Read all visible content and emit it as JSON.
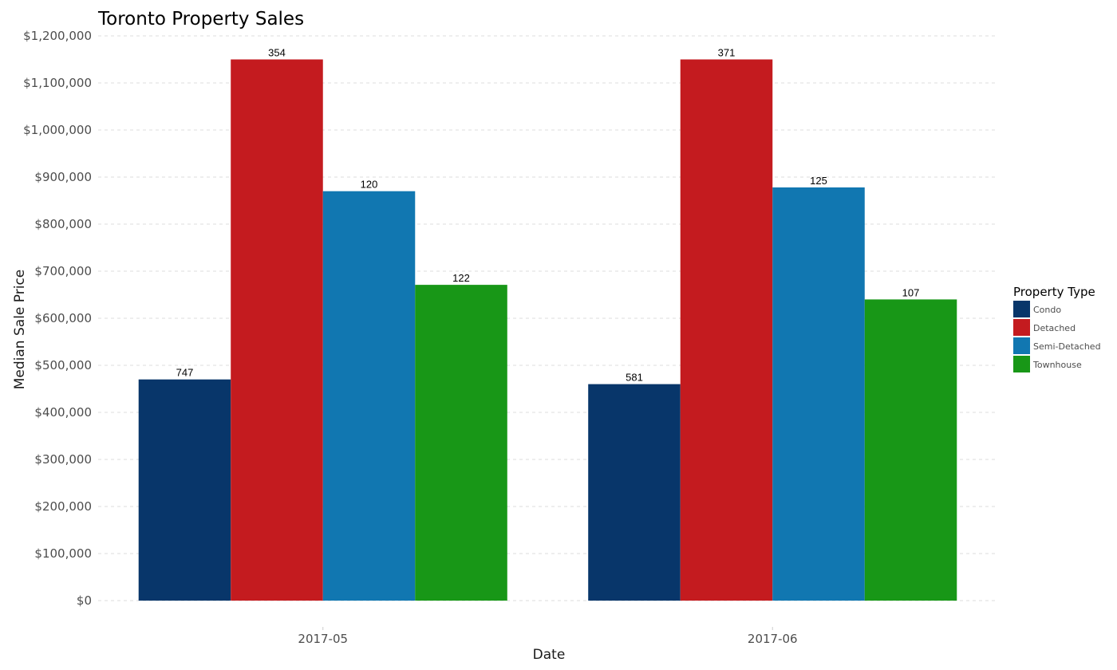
{
  "chart_data": {
    "type": "bar",
    "title": "Toronto Property Sales",
    "xlabel": "Date",
    "ylabel": "Median Sale Price",
    "categories": [
      "2017-05",
      "2017-06"
    ],
    "ylim": [
      0,
      1200000
    ],
    "yticks": [
      0,
      100000,
      200000,
      300000,
      400000,
      500000,
      600000,
      700000,
      800000,
      900000,
      1000000,
      1100000,
      1200000
    ],
    "ytick_labels": [
      "$0",
      "$100,000",
      "$200,000",
      "$300,000",
      "$400,000",
      "$500,000",
      "$600,000",
      "$700,000",
      "$800,000",
      "$900,000",
      "$1,000,000",
      "$1,100,000",
      "$1,200,000"
    ],
    "grid": true,
    "legend": {
      "title": "Property Type",
      "position": "right"
    },
    "series": [
      {
        "name": "Condo",
        "color": "#08366a",
        "values": [
          470000,
          460000
        ],
        "labels": [
          "747",
          "581"
        ]
      },
      {
        "name": "Detached",
        "color": "#c41b1f",
        "values": [
          1150000,
          1150000
        ],
        "labels": [
          "354",
          "371"
        ]
      },
      {
        "name": "Semi-Detached",
        "color": "#1177b1",
        "values": [
          870000,
          878000
        ],
        "labels": [
          "120",
          "125"
        ]
      },
      {
        "name": "Townhouse",
        "color": "#189717",
        "values": [
          671000,
          640000
        ],
        "labels": [
          "122",
          "107"
        ]
      }
    ]
  }
}
